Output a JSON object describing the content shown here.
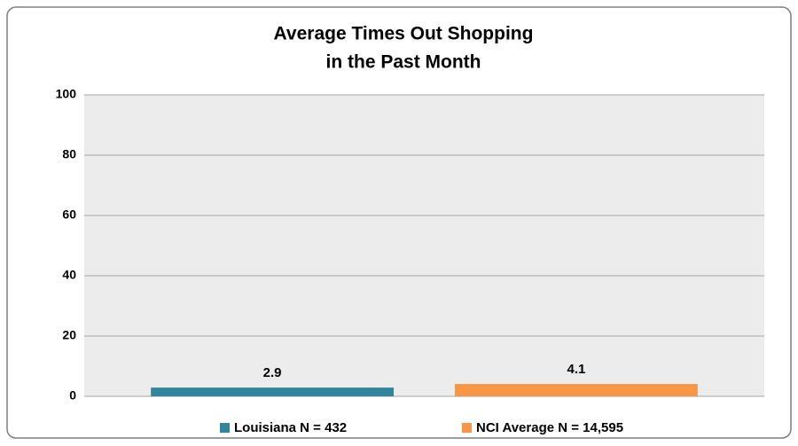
{
  "chart_data": {
    "type": "bar",
    "title": [
      "Average Times Out Shopping",
      "in the Past Month"
    ],
    "categories": [
      null
    ],
    "series": [
      {
        "name": "Louisiana N = 432",
        "color": "#31859c",
        "values": [
          2.9
        ]
      },
      {
        "name": "NCI Average N = 14,595",
        "color": "#f79646",
        "values": [
          4.1
        ]
      }
    ],
    "ylim": [
      0,
      100
    ],
    "yticks": [
      0,
      20,
      40,
      60,
      80,
      100
    ],
    "grid": true,
    "legend": "bottom"
  }
}
